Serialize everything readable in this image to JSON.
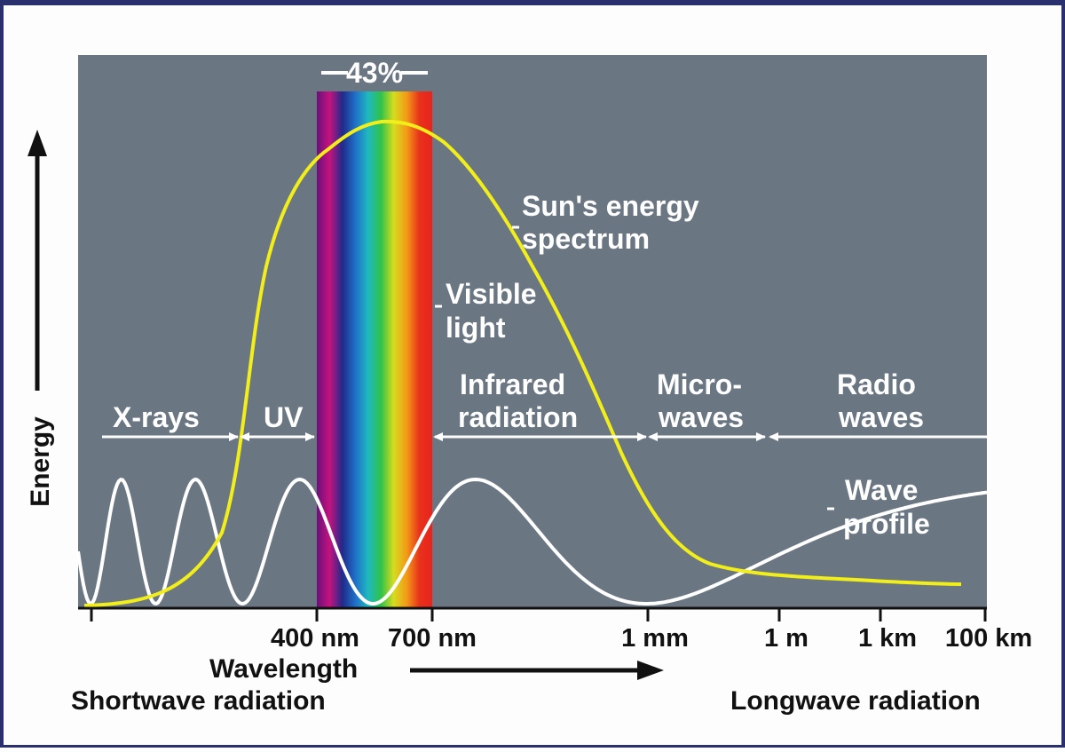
{
  "colors": {
    "plot_background": "#6b7683",
    "sun_curve": "#f2ee1a",
    "wave_curve": "#ffffff",
    "text_dark": "#111111",
    "text_light": "#ffffff",
    "border": "#2a2f6e"
  },
  "visible_band": {
    "percent_label": "43%",
    "spectrum_colors": [
      "#6a0f7a",
      "#c4137e",
      "#1f2a8a",
      "#1f6fc8",
      "#1fb8c0",
      "#2fc24a",
      "#d7dc1e",
      "#f39a17",
      "#e8321c",
      "#e8231c"
    ]
  },
  "labels": {
    "sun_spectrum_line1": "Sun's energy",
    "sun_spectrum_line2": "spectrum",
    "visible_light_line1": "Visible",
    "visible_light_line2": "light",
    "wave_profile_line1": "Wave",
    "wave_profile_line2": "profile"
  },
  "regions": [
    {
      "name": "X-rays",
      "lines": [
        "X-rays"
      ]
    },
    {
      "name": "UV",
      "lines": [
        "UV"
      ]
    },
    {
      "name": "Infrared radiation",
      "lines": [
        "Infrared",
        "radiation"
      ]
    },
    {
      "name": "Micro-waves",
      "lines": [
        "Micro-",
        "waves"
      ]
    },
    {
      "name": "Radio waves",
      "lines": [
        "Radio",
        "waves"
      ]
    }
  ],
  "x_axis": {
    "label": "Wavelength",
    "ticks": [
      "400 nm",
      "700 nm",
      "1 mm",
      "1 m",
      "1 km",
      "100 km"
    ],
    "left_caption": "Shortwave radiation",
    "right_caption": "Longwave radiation"
  },
  "y_axis": {
    "label": "Energy"
  }
}
